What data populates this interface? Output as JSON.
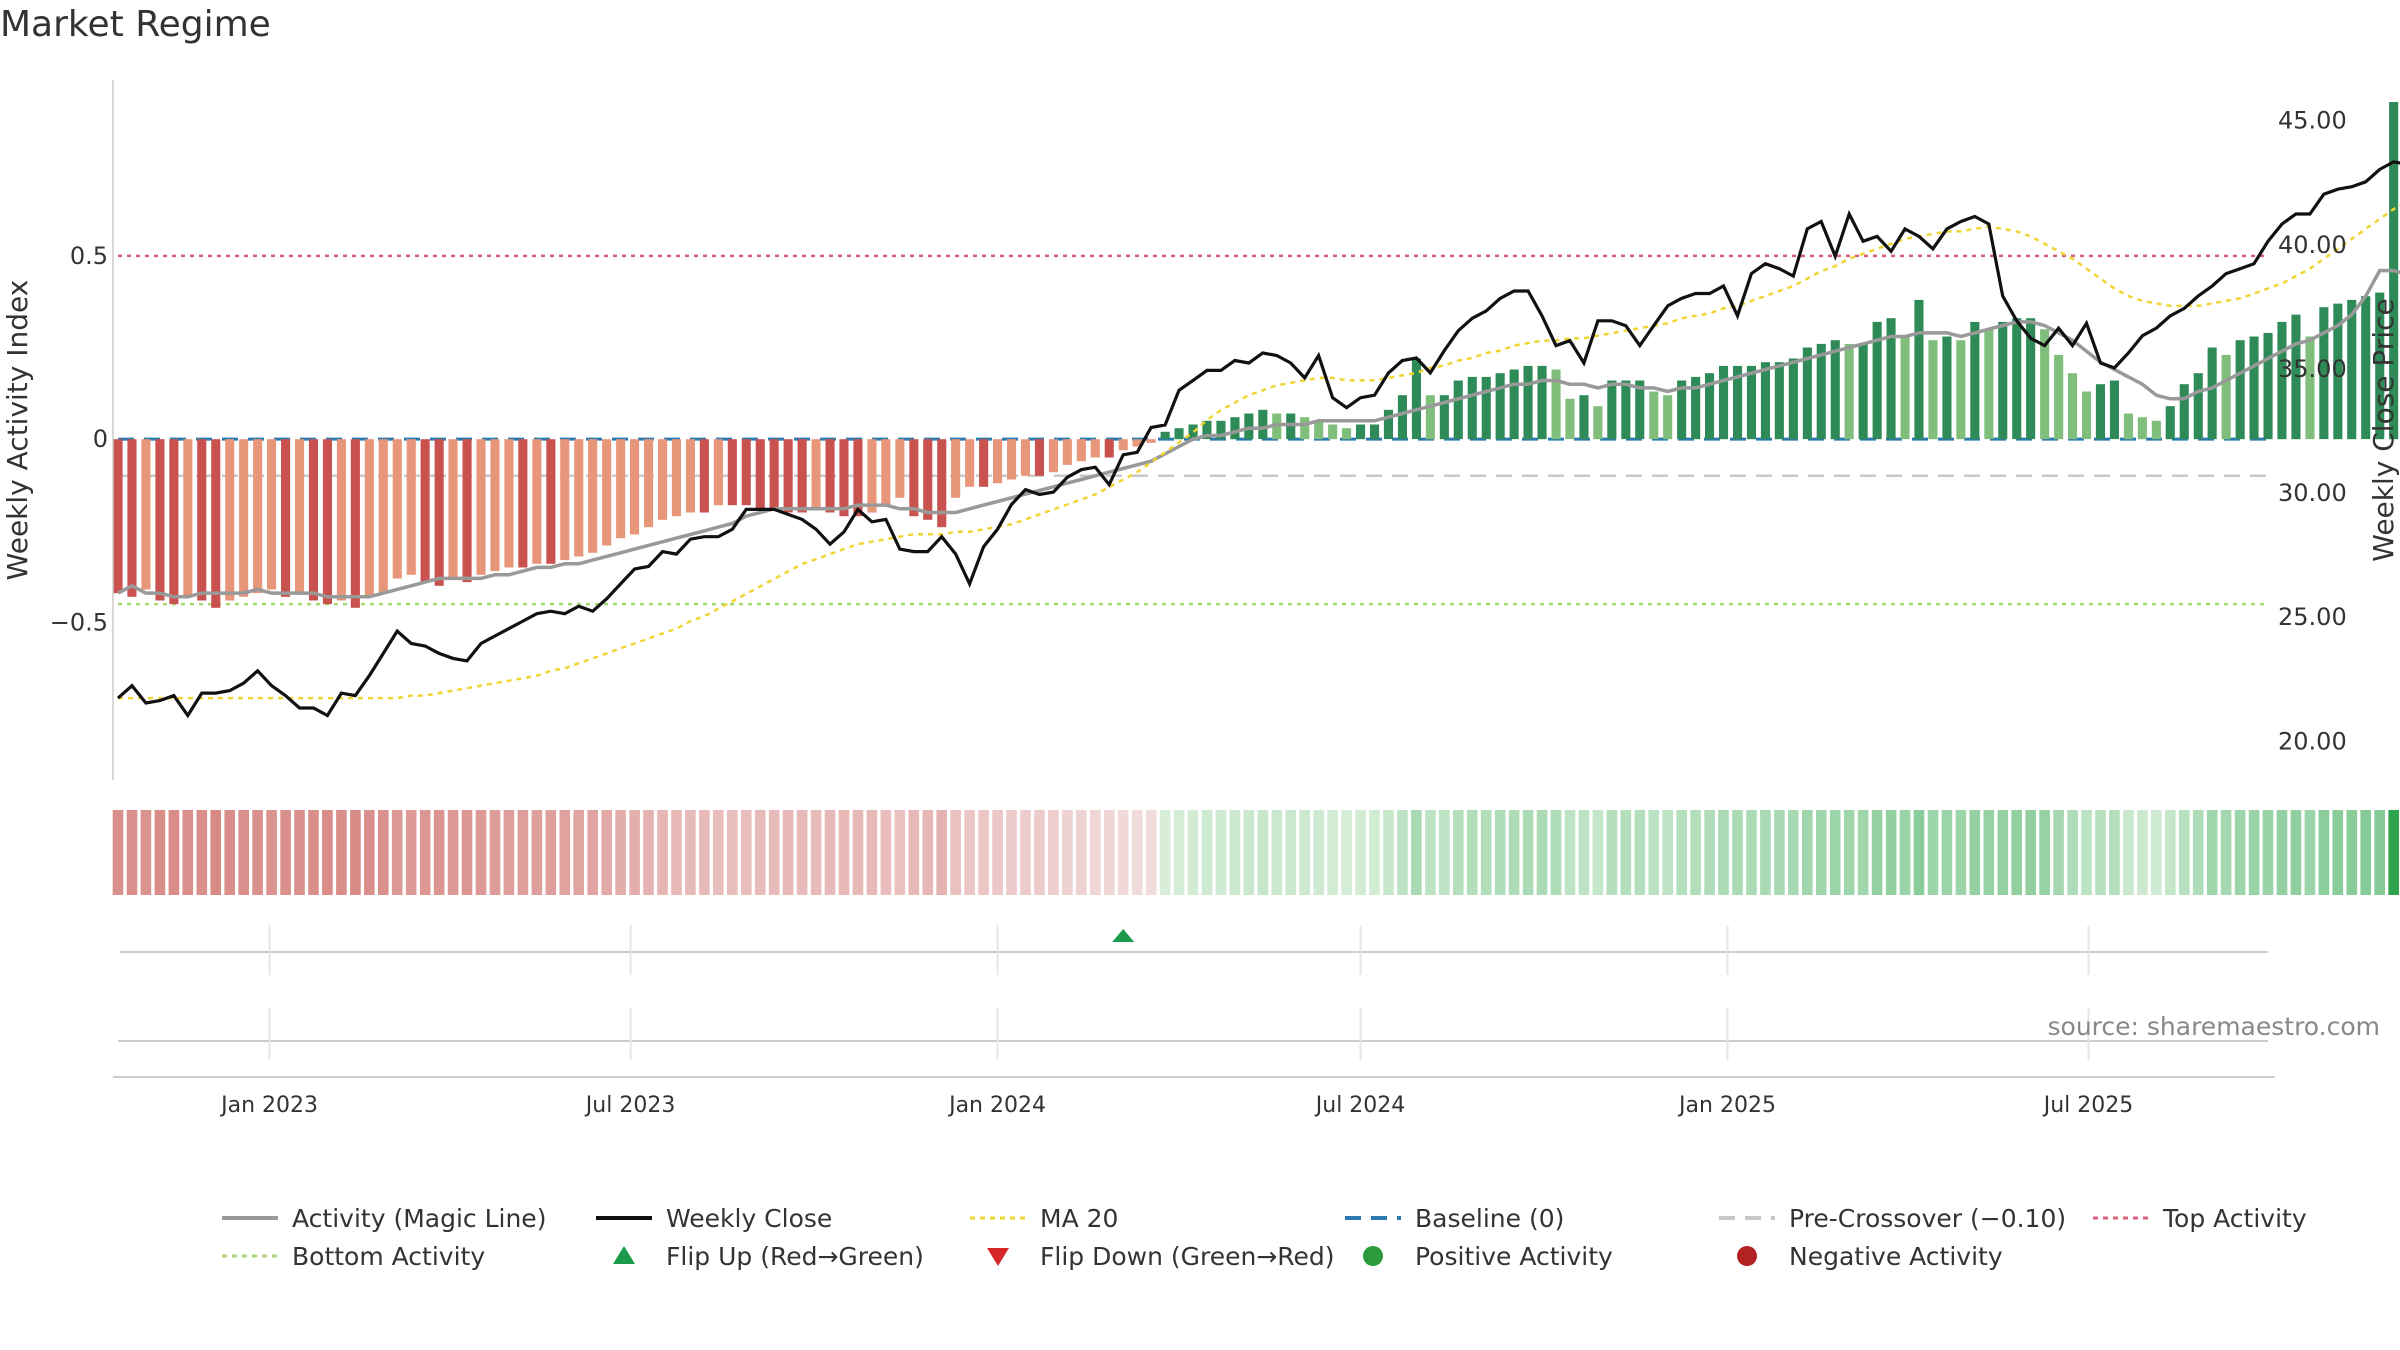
{
  "title": "Market Regime",
  "source": "source: sharemaestro.com",
  "colors": {
    "neg_dark": "#c9524f",
    "neg_light": "#e8967a",
    "pos_dark": "#2e8b57",
    "pos_light": "#7fbf7b",
    "magic_line": "#999999",
    "weekly_close": "#111111",
    "ma20": "#f0d532",
    "baseline": "#2a7ab0",
    "pre_crossover": "#c8c8c8",
    "top_activity": "#d9607a",
    "bottom_activity": "#a8d672",
    "flip_up": "#1a9a4a",
    "flip_down": "#d62728",
    "positive_dot": "#2a9a3a",
    "negative_dot": "#b22222"
  },
  "chart_data": {
    "type": "bar",
    "title": "Market Regime",
    "ylabel": "Weekly Activity Index",
    "y2label": "Weekly Close Price",
    "ylim": [
      -0.93,
      0.98
    ],
    "y2lim": [
      18.4,
      46.6
    ],
    "yticks": [
      "0.5",
      "0",
      "−0.5"
    ],
    "y2ticks": [
      "45.00",
      "40.00",
      "35.00",
      "30.00",
      "25.00",
      "20.00"
    ],
    "xtick_labels": [
      "Jan 2023",
      "Jul 2023",
      "Jan 2024",
      "Jul 2024",
      "Jan 2025",
      "Jul 2025"
    ],
    "x_start": "2022-10-17",
    "x_end": "2025-09-29",
    "flip_up_date": "2024-03-04",
    "reference_lines": {
      "top_activity": 0.5,
      "bottom_activity": -0.45,
      "baseline": 0,
      "pre_crossover": -0.1
    },
    "series": [
      {
        "name": "Weekly Activity Index",
        "values": [
          -0.42,
          -0.43,
          -0.41,
          -0.44,
          -0.45,
          -0.43,
          -0.44,
          -0.46,
          -0.44,
          -0.43,
          -0.42,
          -0.41,
          -0.43,
          -0.42,
          -0.44,
          -0.45,
          -0.44,
          -0.46,
          -0.43,
          -0.42,
          -0.38,
          -0.37,
          -0.39,
          -0.4,
          -0.38,
          -0.39,
          -0.37,
          -0.36,
          -0.35,
          -0.35,
          -0.34,
          -0.34,
          -0.33,
          -0.32,
          -0.31,
          -0.29,
          -0.27,
          -0.26,
          -0.24,
          -0.22,
          -0.21,
          -0.2,
          -0.2,
          -0.18,
          -0.18,
          -0.18,
          -0.19,
          -0.19,
          -0.2,
          -0.2,
          -0.19,
          -0.2,
          -0.21,
          -0.21,
          -0.2,
          -0.18,
          -0.16,
          -0.21,
          -0.22,
          -0.24,
          -0.16,
          -0.13,
          -0.13,
          -0.12,
          -0.11,
          -0.1,
          -0.1,
          -0.09,
          -0.07,
          -0.06,
          -0.05,
          -0.05,
          -0.03,
          -0.02,
          -0.01,
          0.02,
          0.03,
          0.04,
          0.05,
          0.05,
          0.06,
          0.07,
          0.08,
          0.07,
          0.07,
          0.06,
          0.05,
          0.04,
          0.03,
          0.04,
          0.04,
          0.08,
          0.12,
          0.22,
          0.12,
          0.12,
          0.16,
          0.17,
          0.17,
          0.18,
          0.19,
          0.2,
          0.2,
          0.19,
          0.11,
          0.12,
          0.09,
          0.16,
          0.16,
          0.16,
          0.13,
          0.12,
          0.16,
          0.17,
          0.18,
          0.2,
          0.2,
          0.2,
          0.21,
          0.21,
          0.22,
          0.25,
          0.26,
          0.27,
          0.26,
          0.26,
          0.32,
          0.33,
          0.28,
          0.38,
          0.27,
          0.28,
          0.27,
          0.32,
          0.3,
          0.32,
          0.33,
          0.33,
          0.3,
          0.23,
          0.18,
          0.13,
          0.15,
          0.16,
          0.07,
          0.06,
          0.05,
          0.09,
          0.15,
          0.18,
          0.25,
          0.23,
          0.27,
          0.28,
          0.29,
          0.32,
          0.34,
          0.28,
          0.36,
          0.37,
          0.38,
          0.39,
          0.4,
          0.92,
          0.42,
          0.42,
          0.43,
          0.44,
          0.41,
          0.42,
          0.45,
          0.48
        ]
      },
      {
        "name": "Activity (Magic Line)",
        "values": [
          -0.42,
          -0.4,
          -0.42,
          -0.42,
          -0.43,
          -0.43,
          -0.42,
          -0.42,
          -0.42,
          -0.42,
          -0.41,
          -0.42,
          -0.42,
          -0.42,
          -0.42,
          -0.43,
          -0.43,
          -0.43,
          -0.43,
          -0.42,
          -0.41,
          -0.4,
          -0.39,
          -0.38,
          -0.38,
          -0.38,
          -0.38,
          -0.37,
          -0.37,
          -0.36,
          -0.35,
          -0.35,
          -0.34,
          -0.34,
          -0.33,
          -0.32,
          -0.31,
          -0.3,
          -0.29,
          -0.28,
          -0.27,
          -0.26,
          -0.25,
          -0.24,
          -0.23,
          -0.21,
          -0.2,
          -0.19,
          -0.19,
          -0.19,
          -0.19,
          -0.19,
          -0.19,
          -0.18,
          -0.18,
          -0.18,
          -0.19,
          -0.19,
          -0.2,
          -0.2,
          -0.2,
          -0.19,
          -0.18,
          -0.17,
          -0.16,
          -0.15,
          -0.14,
          -0.13,
          -0.12,
          -0.11,
          -0.1,
          -0.09,
          -0.08,
          -0.07,
          -0.06,
          -0.04,
          -0.02,
          0.0,
          0.01,
          0.01,
          0.02,
          0.03,
          0.03,
          0.04,
          0.04,
          0.04,
          0.05,
          0.05,
          0.05,
          0.05,
          0.05,
          0.06,
          0.07,
          0.08,
          0.09,
          0.1,
          0.11,
          0.12,
          0.13,
          0.14,
          0.15,
          0.15,
          0.16,
          0.16,
          0.15,
          0.15,
          0.14,
          0.15,
          0.15,
          0.14,
          0.14,
          0.13,
          0.14,
          0.14,
          0.15,
          0.16,
          0.17,
          0.18,
          0.19,
          0.2,
          0.21,
          0.22,
          0.23,
          0.24,
          0.25,
          0.26,
          0.27,
          0.28,
          0.28,
          0.29,
          0.29,
          0.29,
          0.28,
          0.29,
          0.3,
          0.31,
          0.32,
          0.32,
          0.31,
          0.29,
          0.27,
          0.24,
          0.21,
          0.19,
          0.17,
          0.15,
          0.12,
          0.11,
          0.11,
          0.13,
          0.14,
          0.16,
          0.18,
          0.2,
          0.22,
          0.24,
          0.26,
          0.27,
          0.29,
          0.31,
          0.34,
          0.39,
          0.46,
          0.46,
          0.45,
          0.45,
          0.45,
          0.44,
          0.44,
          0.45,
          0.46
        ]
      },
      {
        "name": "Weekly Close",
        "values": [
          21.7,
          22.2,
          21.5,
          21.6,
          21.8,
          21.0,
          21.9,
          21.9,
          22.0,
          22.3,
          22.8,
          22.2,
          21.8,
          21.3,
          21.3,
          21.0,
          21.9,
          21.8,
          22.6,
          23.5,
          24.4,
          23.9,
          23.8,
          23.5,
          23.3,
          23.2,
          23.9,
          24.2,
          24.5,
          24.8,
          25.1,
          25.2,
          25.1,
          25.4,
          25.2,
          25.7,
          26.3,
          26.9,
          27.0,
          27.6,
          27.5,
          28.1,
          28.2,
          28.2,
          28.5,
          29.3,
          29.3,
          29.3,
          29.1,
          28.9,
          28.5,
          27.9,
          28.4,
          29.3,
          28.8,
          28.9,
          27.7,
          27.6,
          27.6,
          28.2,
          27.5,
          26.3,
          27.8,
          28.5,
          29.5,
          30.1,
          29.9,
          30.0,
          30.6,
          30.9,
          31.0,
          30.3,
          31.5,
          31.6,
          32.6,
          32.7,
          34.1,
          34.5,
          34.9,
          34.9,
          35.3,
          35.2,
          35.6,
          35.5,
          35.2,
          34.6,
          35.5,
          33.8,
          33.4,
          33.8,
          33.9,
          34.8,
          35.3,
          35.4,
          34.8,
          35.7,
          36.5,
          37.0,
          37.3,
          37.8,
          38.1,
          38.1,
          37.1,
          35.9,
          36.1,
          35.2,
          36.9,
          36.9,
          36.7,
          35.9,
          36.7,
          37.5,
          37.8,
          38.0,
          38.0,
          38.3,
          37.1,
          38.8,
          39.2,
          39.0,
          38.7,
          40.6,
          40.9,
          39.5,
          41.2,
          40.1,
          40.3,
          39.7,
          40.6,
          40.3,
          39.8,
          40.6,
          40.9,
          41.1,
          40.8,
          37.9,
          36.9,
          36.2,
          35.9,
          36.6,
          35.9,
          36.8,
          35.2,
          35.0,
          35.6,
          36.3,
          36.6,
          37.1,
          37.4,
          37.9,
          38.3,
          38.8,
          39.0,
          39.2,
          40.1,
          40.8,
          41.2,
          41.2,
          42.0,
          42.2,
          42.3,
          42.5,
          43.0,
          43.3,
          43.2,
          43.5,
          43.7,
          44.0,
          44.4,
          45.1,
          45.7
        ]
      },
      {
        "name": "MA 20",
        "values": [
          21.7,
          21.7,
          21.7,
          21.7,
          21.7,
          21.7,
          21.7,
          21.7,
          21.7,
          21.7,
          21.7,
          21.7,
          21.7,
          21.7,
          21.7,
          21.7,
          21.7,
          21.7,
          21.7,
          21.7,
          21.7,
          21.8,
          21.8,
          21.9,
          22.0,
          22.1,
          22.2,
          22.3,
          22.4,
          22.5,
          22.6,
          22.8,
          22.9,
          23.1,
          23.3,
          23.5,
          23.7,
          23.9,
          24.1,
          24.3,
          24.5,
          24.8,
          25.0,
          25.3,
          25.6,
          25.9,
          26.2,
          26.5,
          26.8,
          27.1,
          27.3,
          27.5,
          27.7,
          27.9,
          28.0,
          28.1,
          28.2,
          28.3,
          28.3,
          28.3,
          28.4,
          28.4,
          28.5,
          28.6,
          28.7,
          28.9,
          29.1,
          29.3,
          29.5,
          29.7,
          29.9,
          30.2,
          30.5,
          30.8,
          31.2,
          31.6,
          32.0,
          32.4,
          32.9,
          33.3,
          33.6,
          33.9,
          34.1,
          34.3,
          34.4,
          34.5,
          34.6,
          34.6,
          34.5,
          34.5,
          34.5,
          34.6,
          34.7,
          34.8,
          35.0,
          35.1,
          35.3,
          35.4,
          35.6,
          35.7,
          35.9,
          36.0,
          36.1,
          36.1,
          36.2,
          36.2,
          36.3,
          36.4,
          36.5,
          36.6,
          36.7,
          36.8,
          37.0,
          37.1,
          37.2,
          37.4,
          37.5,
          37.7,
          37.9,
          38.1,
          38.3,
          38.6,
          38.9,
          39.1,
          39.4,
          39.6,
          39.8,
          40.0,
          40.2,
          40.3,
          40.4,
          40.5,
          40.5,
          40.6,
          40.7,
          40.6,
          40.5,
          40.3,
          40.0,
          39.7,
          39.4,
          39.0,
          38.6,
          38.2,
          37.9,
          37.7,
          37.6,
          37.5,
          37.5,
          37.5,
          37.6,
          37.7,
          37.8,
          38.0,
          38.2,
          38.4,
          38.7,
          39.0,
          39.4,
          39.8,
          40.2,
          40.6,
          41.0,
          41.4,
          41.7,
          42.0,
          42.3,
          42.5,
          42.8,
          43.0,
          43.2,
          43.4
        ]
      }
    ],
    "legend": [
      "Activity (Magic Line)",
      "Weekly Close",
      "MA 20",
      "Baseline (0)",
      "Pre-Crossover (−0.10)",
      "Top Activity",
      "Bottom Activity",
      "Flip Up (Red→Green)",
      "Flip Down (Green→Red)",
      "Positive Activity",
      "Negative Activity"
    ],
    "legend_placement": "bottom",
    "grid": false
  }
}
